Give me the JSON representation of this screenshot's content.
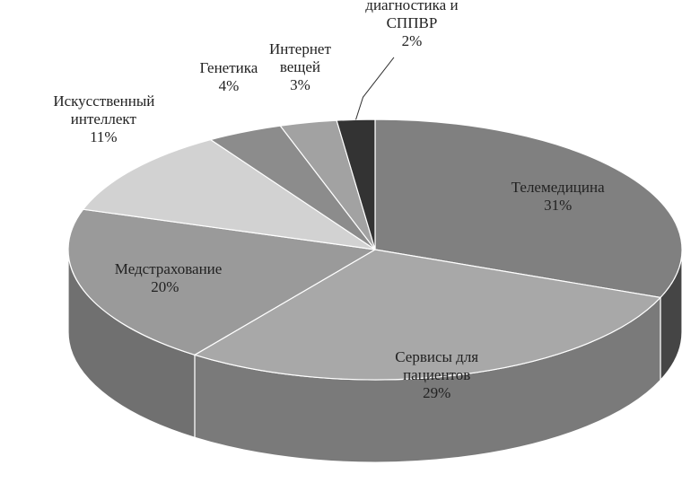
{
  "chart_data": {
    "type": "pie",
    "categories": [
      "Телемедицина",
      "Сервисы для пациентов",
      "Медстрахование",
      "Искусственный интеллект",
      "Генетика",
      "Интернет вещей",
      "Цифровая диагностика и СППВР"
    ],
    "values": [
      31,
      29,
      20,
      11,
      4,
      3,
      2
    ],
    "value_labels": [
      "31%",
      "29%",
      "20%",
      "11%",
      "4%",
      "3%",
      "2%"
    ],
    "colors": [
      "#808080",
      "#a8a8a8",
      "#9a9a9a",
      "#d2d2d2",
      "#8c8c8c",
      "#a2a2a2",
      "#333333"
    ],
    "side_colors": [
      "#454545",
      "#7a7a7a",
      "#707070",
      "#9a9a9a",
      "#606060",
      "#707070",
      "#1e1e1e"
    ]
  }
}
